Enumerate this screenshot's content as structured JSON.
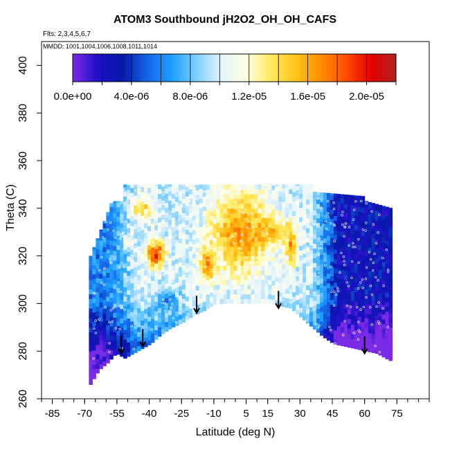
{
  "chart_data": {
    "type": "heatmap",
    "title": "ATOM3 Southbound jH2O2_OH_OH_CAFS",
    "flights_label": "Flts: 2,3,4,5,6,7",
    "dates_label": "MMDD: 1001,1004,1006,1008,1011,1014",
    "xlabel": "Latitude (deg N)",
    "ylabel": "Theta (C)",
    "xlim": [
      -90,
      90
    ],
    "ylim": [
      260,
      410
    ],
    "x_ticks": [
      "-85",
      "-70",
      "-55",
      "-40",
      "-25",
      "-10",
      "5",
      "15",
      "30",
      "45",
      "60",
      "75"
    ],
    "x_tick_values": [
      -85,
      -70,
      -55,
      -40,
      -25,
      -10,
      5,
      15,
      30,
      45,
      60,
      75
    ],
    "x_minor_step": 5,
    "y_ticks": [
      "260",
      "280",
      "300",
      "320",
      "340",
      "360",
      "380",
      "400"
    ],
    "y_tick_values": [
      260,
      280,
      300,
      320,
      340,
      360,
      380,
      400
    ],
    "colorbar": {
      "range": [
        0,
        2.2e-05
      ],
      "tick_labels": [
        "0.0e+00",
        "4.0e-06",
        "8.0e-06",
        "1.2e-05",
        "1.6e-05",
        "2.0e-05"
      ],
      "tick_values": [
        0,
        4e-06,
        8e-06,
        1.2e-05,
        1.6e-05,
        2e-05
      ],
      "stops": [
        "#7b2be6",
        "#1f10c9",
        "#0818a8",
        "#1565e8",
        "#1ea0ff",
        "#7fd0ff",
        "#e6f4ff",
        "#ffffe0",
        "#ffe85a",
        "#ffc21a",
        "#ff8c00",
        "#ff4d00",
        "#e00000",
        "#b22222"
      ]
    },
    "arrows": [
      {
        "lat": -53,
        "theta": 279
      },
      {
        "lat": -43,
        "theta": 282
      },
      {
        "lat": -18,
        "theta": 296
      },
      {
        "lat": 20,
        "theta": 298
      },
      {
        "lat": 60,
        "theta": 279
      }
    ]
  }
}
